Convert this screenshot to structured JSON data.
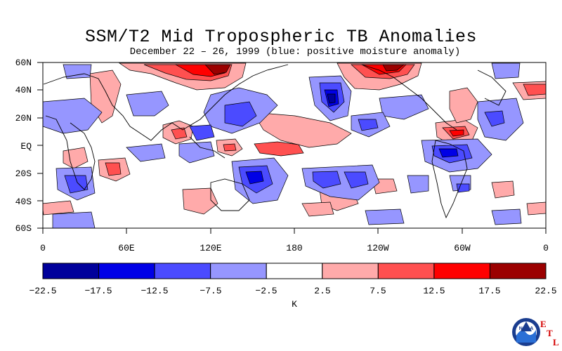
{
  "title": "SSM/T2 Mid Tropospheric TB Anomalies",
  "subtitle": "December 22 – 26, 1999 (blue: positive moisture anomaly)",
  "lat_labels": [
    "60N",
    "40N",
    "20N",
    "EQ",
    "20S",
    "40S",
    "60S"
  ],
  "lon_labels": [
    "0",
    "60E",
    "120E",
    "180",
    "120W",
    "60W",
    "0"
  ],
  "colorbar": {
    "ticks": [
      "−22.5",
      "−17.5",
      "−12.5",
      "−7.5",
      "−2.5",
      "2.5",
      "7.5",
      "12.5",
      "17.5",
      "22.5"
    ],
    "unit": "K",
    "colors": [
      "#00009b",
      "#0000e6",
      "#4b4bff",
      "#9696ff",
      "#ffffff",
      "#ffaaaa",
      "#ff5050",
      "#ff0000",
      "#9b0000"
    ]
  },
  "logo": {
    "text": "NOAA",
    "etl": [
      "E",
      "T",
      "L"
    ]
  }
}
